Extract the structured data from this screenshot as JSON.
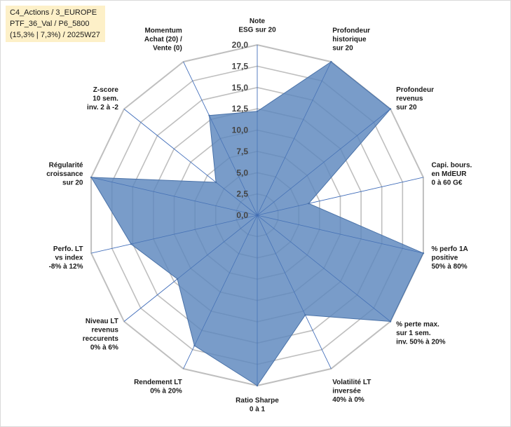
{
  "info": {
    "line1": "C4_Actions / 3_EUROPE",
    "line2": "PTF_36_Val / P6_5800",
    "line3": "(15,3% | 7,3%) / 2025W27"
  },
  "chart_data": {
    "type": "radar",
    "rmax": 20,
    "ticks": [
      "0,0",
      "2,5",
      "5,0",
      "7,5",
      "10,0",
      "12,5",
      "15,0",
      "17,5",
      "20,0"
    ],
    "tick_values": [
      0,
      2.5,
      5,
      7.5,
      10,
      12.5,
      15,
      17.5,
      20
    ],
    "grid": true,
    "legend": "none",
    "fill_color": "#5b86bd",
    "stroke_color": "#4a72a8",
    "grid_color": "#bfbfbf",
    "axis_color": "#4472c4",
    "axes": [
      {
        "label": [
          "Note",
          "ESG sur 20"
        ],
        "value": 12.2
      },
      {
        "label": [
          "Profondeur",
          "historique",
          "sur 20"
        ],
        "value": 20
      },
      {
        "label": [
          "Profondeur",
          "revenus",
          "sur 20"
        ],
        "value": 20
      },
      {
        "label": [
          "Capi. bours.",
          "en MdEUR",
          "0 à 60 G€"
        ],
        "value": 6.2
      },
      {
        "label": [
          "% perfo 1A",
          "positive",
          "50% à 80%"
        ],
        "value": 20
      },
      {
        "label": [
          "% perte max.",
          "sur 1 sem.",
          "inv. 50% à 20%"
        ],
        "value": 20
      },
      {
        "label": [
          "Volatilité LT",
          "inversée",
          "40% à 0%"
        ],
        "value": 13
      },
      {
        "label": [
          "Ratio Sharpe",
          "0 à 1"
        ],
        "value": 20
      },
      {
        "label": [
          "Rendement LT",
          "0% à 20%"
        ],
        "value": 17
      },
      {
        "label": [
          "Niveau LT",
          "revenus",
          "reccurents",
          "0% à 6%"
        ],
        "value": 12
      },
      {
        "label": [
          "Perfo. LT",
          "vs index",
          "-8% à 12%"
        ],
        "value": 15.2
      },
      {
        "label": [
          "Régularité",
          "croissance",
          "sur 20"
        ],
        "value": 20
      },
      {
        "label": [
          "Z-score",
          "10 sem.",
          "inv. 2 à -2"
        ],
        "value": 6.2
      },
      {
        "label": [
          "Momentum",
          "Achat (20) /",
          "Vente (0)"
        ],
        "value": 13
      }
    ]
  }
}
